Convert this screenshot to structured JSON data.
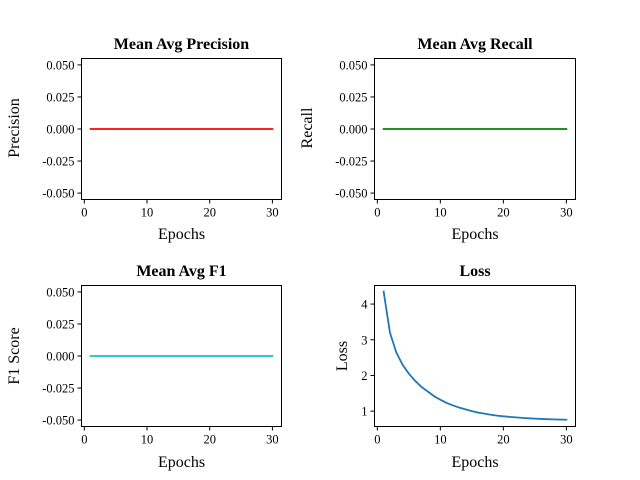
{
  "chart_data": [
    {
      "id": "precision",
      "type": "line",
      "title": "Mean Avg Precision",
      "xlabel": "Epochs",
      "ylabel": "Precision",
      "xlim": [
        -0.45,
        31.45
      ],
      "ylim": [
        -0.055,
        0.055
      ],
      "xticks": [
        0,
        10,
        20,
        30
      ],
      "yticks": [
        "-0.050",
        "-0.025",
        "0.000",
        "0.025",
        "0.050"
      ],
      "ytick_values": [
        -0.05,
        -0.025,
        0,
        0.025,
        0.05
      ],
      "grid": false,
      "series": [
        {
          "color": "#ff0000",
          "x": [
            1,
            2,
            3,
            4,
            5,
            6,
            7,
            8,
            9,
            10,
            11,
            12,
            13,
            14,
            15,
            16,
            17,
            18,
            19,
            20,
            21,
            22,
            23,
            24,
            25,
            26,
            27,
            28,
            29,
            30
          ],
          "y": [
            0,
            0,
            0,
            0,
            0,
            0,
            0,
            0,
            0,
            0,
            0,
            0,
            0,
            0,
            0,
            0,
            0,
            0,
            0,
            0,
            0,
            0,
            0,
            0,
            0,
            0,
            0,
            0,
            0,
            0
          ]
        }
      ]
    },
    {
      "id": "recall",
      "type": "line",
      "title": "Mean Avg Recall",
      "xlabel": "Epochs",
      "ylabel": "Recall",
      "xlim": [
        -0.45,
        31.45
      ],
      "ylim": [
        -0.055,
        0.055
      ],
      "xticks": [
        0,
        10,
        20,
        30
      ],
      "yticks": [
        "-0.050",
        "-0.025",
        "0.000",
        "0.025",
        "0.050"
      ],
      "ytick_values": [
        -0.05,
        -0.025,
        0,
        0.025,
        0.05
      ],
      "grid": false,
      "series": [
        {
          "color": "#008000",
          "x": [
            1,
            2,
            3,
            4,
            5,
            6,
            7,
            8,
            9,
            10,
            11,
            12,
            13,
            14,
            15,
            16,
            17,
            18,
            19,
            20,
            21,
            22,
            23,
            24,
            25,
            26,
            27,
            28,
            29,
            30
          ],
          "y": [
            0,
            0,
            0,
            0,
            0,
            0,
            0,
            0,
            0,
            0,
            0,
            0,
            0,
            0,
            0,
            0,
            0,
            0,
            0,
            0,
            0,
            0,
            0,
            0,
            0,
            0,
            0,
            0,
            0,
            0
          ]
        }
      ]
    },
    {
      "id": "f1",
      "type": "line",
      "title": "Mean Avg F1",
      "xlabel": "Epochs",
      "ylabel": "F1 Score",
      "xlim": [
        -0.45,
        31.45
      ],
      "ylim": [
        -0.055,
        0.055
      ],
      "xticks": [
        0,
        10,
        20,
        30
      ],
      "yticks": [
        "-0.050",
        "-0.025",
        "0.000",
        "0.025",
        "0.050"
      ],
      "ytick_values": [
        -0.05,
        -0.025,
        0,
        0.025,
        0.05
      ],
      "grid": false,
      "series": [
        {
          "color": "#17becf",
          "x": [
            1,
            2,
            3,
            4,
            5,
            6,
            7,
            8,
            9,
            10,
            11,
            12,
            13,
            14,
            15,
            16,
            17,
            18,
            19,
            20,
            21,
            22,
            23,
            24,
            25,
            26,
            27,
            28,
            29,
            30
          ],
          "y": [
            0,
            0,
            0,
            0,
            0,
            0,
            0,
            0,
            0,
            0,
            0,
            0,
            0,
            0,
            0,
            0,
            0,
            0,
            0,
            0,
            0,
            0,
            0,
            0,
            0,
            0,
            0,
            0,
            0,
            0
          ]
        }
      ]
    },
    {
      "id": "loss",
      "type": "line",
      "title": "Loss",
      "xlabel": "Epochs",
      "ylabel": "Loss",
      "xlim": [
        -0.45,
        31.45
      ],
      "ylim": [
        0.57,
        4.52
      ],
      "xticks": [
        0,
        10,
        20,
        30
      ],
      "yticks": [
        "1",
        "2",
        "3",
        "4"
      ],
      "ytick_values": [
        1,
        2,
        3,
        4
      ],
      "grid": false,
      "series": [
        {
          "color": "#1f77b4",
          "x": [
            1,
            2,
            3,
            4,
            5,
            6,
            7,
            8,
            9,
            10,
            11,
            12,
            13,
            14,
            15,
            16,
            17,
            18,
            19,
            20,
            21,
            22,
            23,
            24,
            25,
            26,
            27,
            28,
            29,
            30
          ],
          "y": [
            4.35,
            3.2,
            2.65,
            2.3,
            2.05,
            1.85,
            1.68,
            1.55,
            1.42,
            1.32,
            1.23,
            1.16,
            1.1,
            1.05,
            1.0,
            0.96,
            0.93,
            0.9,
            0.875,
            0.855,
            0.84,
            0.825,
            0.812,
            0.8,
            0.79,
            0.782,
            0.775,
            0.77,
            0.765,
            0.76
          ]
        }
      ]
    }
  ]
}
